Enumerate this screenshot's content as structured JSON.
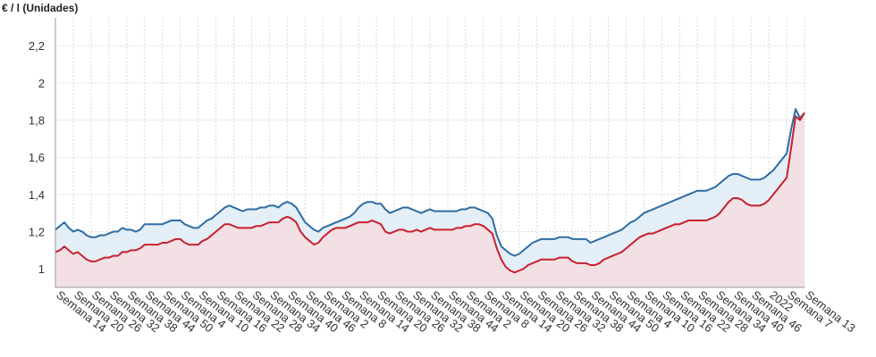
{
  "chart_data": {
    "type": "line",
    "ylabel": "€ / l (Unidades)",
    "ylim": [
      0.9,
      2.35
    ],
    "yticks": [
      "1",
      "1,2",
      "1,4",
      "1,6",
      "1,8",
      "2",
      "2,2"
    ],
    "ytick_values": [
      1.0,
      1.2,
      1.4,
      1.6,
      1.8,
      2.0,
      2.2
    ],
    "grid": true,
    "x_tick_labels": [
      "Semana 14",
      "Semana 20",
      "Semana 26",
      "Semana 32",
      "Semana 38",
      "Semana 44",
      "Semana 50",
      "Semana 4",
      "Semana 10",
      "Semana 16",
      "Semana 22",
      "Semana 28",
      "Semana 34",
      "Semana 40",
      "Semana 46",
      "Semana 2",
      "Semana 8",
      "Semana 14",
      "Semana 20",
      "Semana 26",
      "Semana 32",
      "Semana 38",
      "Semana 44",
      "Semana 2",
      "Semana 8",
      "Semana 14",
      "Semana 20",
      "Semana 26",
      "Semana 32",
      "Semana 38",
      "Semana 44",
      "Semana 50",
      "Semana 4",
      "Semana 10",
      "Semana 16",
      "Semana 22",
      "Semana 28",
      "Semana 34",
      "Semana 40",
      "Semana 46",
      "2022",
      "Semana 7",
      "Semana 13"
    ],
    "series": [
      {
        "name": "",
        "color": "#2e6da4",
        "fill": "#e3eef6",
        "values": [
          1.21,
          1.23,
          1.25,
          1.22,
          1.2,
          1.21,
          1.2,
          1.18,
          1.17,
          1.17,
          1.18,
          1.18,
          1.19,
          1.2,
          1.2,
          1.22,
          1.21,
          1.21,
          1.2,
          1.21,
          1.24,
          1.24,
          1.24,
          1.24,
          1.24,
          1.25,
          1.26,
          1.26,
          1.26,
          1.24,
          1.23,
          1.22,
          1.22,
          1.24,
          1.26,
          1.27,
          1.29,
          1.31,
          1.33,
          1.34,
          1.33,
          1.32,
          1.31,
          1.32,
          1.32,
          1.32,
          1.33,
          1.33,
          1.34,
          1.34,
          1.33,
          1.35,
          1.36,
          1.35,
          1.33,
          1.29,
          1.25,
          1.23,
          1.21,
          1.2,
          1.22,
          1.23,
          1.24,
          1.25,
          1.26,
          1.27,
          1.28,
          1.3,
          1.33,
          1.35,
          1.36,
          1.36,
          1.35,
          1.35,
          1.32,
          1.3,
          1.31,
          1.32,
          1.33,
          1.33,
          1.32,
          1.31,
          1.3,
          1.31,
          1.32,
          1.31,
          1.31,
          1.31,
          1.31,
          1.31,
          1.31,
          1.32,
          1.32,
          1.33,
          1.33,
          1.32,
          1.31,
          1.3,
          1.27,
          1.18,
          1.12,
          1.1,
          1.08,
          1.07,
          1.08,
          1.1,
          1.12,
          1.14,
          1.15,
          1.16,
          1.16,
          1.16,
          1.16,
          1.17,
          1.17,
          1.17,
          1.16,
          1.16,
          1.16,
          1.16,
          1.14,
          1.15,
          1.16,
          1.17,
          1.18,
          1.19,
          1.2,
          1.21,
          1.23,
          1.25,
          1.26,
          1.28,
          1.3,
          1.31,
          1.32,
          1.33,
          1.34,
          1.35,
          1.36,
          1.37,
          1.38,
          1.39,
          1.4,
          1.41,
          1.42,
          1.42,
          1.42,
          1.43,
          1.44,
          1.46,
          1.48,
          1.5,
          1.51,
          1.51,
          1.5,
          1.49,
          1.48,
          1.48,
          1.48,
          1.49,
          1.51,
          1.53,
          1.56,
          1.59,
          1.62,
          1.75,
          1.86,
          1.81,
          1.84
        ]
      },
      {
        "name": "",
        "color": "#c8202f",
        "fill": "#f3e0e4",
        "values": [
          1.09,
          1.1,
          1.12,
          1.1,
          1.08,
          1.09,
          1.07,
          1.05,
          1.04,
          1.04,
          1.05,
          1.06,
          1.06,
          1.07,
          1.07,
          1.09,
          1.09,
          1.1,
          1.1,
          1.11,
          1.13,
          1.13,
          1.13,
          1.13,
          1.14,
          1.14,
          1.15,
          1.16,
          1.16,
          1.14,
          1.13,
          1.13,
          1.13,
          1.15,
          1.16,
          1.18,
          1.2,
          1.22,
          1.24,
          1.24,
          1.23,
          1.22,
          1.22,
          1.22,
          1.22,
          1.23,
          1.23,
          1.24,
          1.25,
          1.25,
          1.25,
          1.27,
          1.28,
          1.27,
          1.25,
          1.2,
          1.17,
          1.15,
          1.13,
          1.14,
          1.17,
          1.19,
          1.21,
          1.22,
          1.22,
          1.22,
          1.23,
          1.24,
          1.25,
          1.25,
          1.25,
          1.26,
          1.25,
          1.24,
          1.2,
          1.19,
          1.2,
          1.21,
          1.21,
          1.2,
          1.2,
          1.21,
          1.2,
          1.21,
          1.22,
          1.21,
          1.21,
          1.21,
          1.21,
          1.21,
          1.22,
          1.22,
          1.23,
          1.23,
          1.24,
          1.24,
          1.23,
          1.21,
          1.19,
          1.11,
          1.05,
          1.01,
          0.99,
          0.98,
          0.99,
          1.0,
          1.02,
          1.03,
          1.04,
          1.05,
          1.05,
          1.05,
          1.05,
          1.06,
          1.06,
          1.06,
          1.04,
          1.03,
          1.03,
          1.03,
          1.02,
          1.02,
          1.03,
          1.05,
          1.06,
          1.07,
          1.08,
          1.09,
          1.11,
          1.13,
          1.15,
          1.17,
          1.18,
          1.19,
          1.19,
          1.2,
          1.21,
          1.22,
          1.23,
          1.24,
          1.24,
          1.25,
          1.26,
          1.26,
          1.26,
          1.26,
          1.26,
          1.27,
          1.28,
          1.3,
          1.33,
          1.36,
          1.38,
          1.38,
          1.37,
          1.35,
          1.34,
          1.34,
          1.34,
          1.35,
          1.37,
          1.4,
          1.43,
          1.46,
          1.49,
          1.65,
          1.82,
          1.8,
          1.84
        ]
      }
    ]
  }
}
